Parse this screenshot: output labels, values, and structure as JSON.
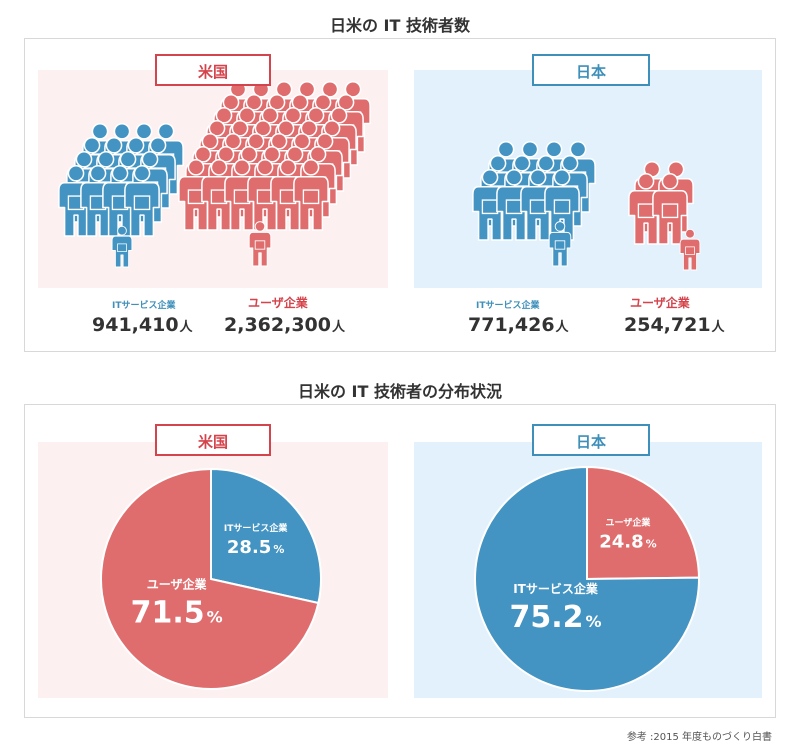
{
  "titles": {
    "top": "日米の IT 技術者数",
    "bottom": "日米の IT 技術者の分布状況"
  },
  "us": {
    "label": "米国",
    "it_label": "ITサービス企業",
    "it_count": "941,410",
    "user_label": "ユーザ企業",
    "user_count": "2,362,300",
    "unit": "人"
  },
  "jp": {
    "label": "日本",
    "it_label": "ITサービス企業",
    "it_count": "771,426",
    "user_label": "ユーザ企業",
    "user_count": "254,721",
    "unit": "人"
  },
  "colors": {
    "it_blue": "#4394c2",
    "user_red": "#e06d6e",
    "us_bg": "#fdf0f0",
    "jp_bg": "#e2f1fb"
  },
  "chart_data": [
    {
      "type": "pie",
      "title": "米国",
      "slices": [
        {
          "label": "ITサービス企業",
          "value": 28.5,
          "value_text": "28.5",
          "color": "#4394c2"
        },
        {
          "label": "ユーザ企業",
          "value": 71.5,
          "value_text": "71.5",
          "color": "#e06d6e"
        }
      ],
      "unit": "%"
    },
    {
      "type": "pie",
      "title": "日本",
      "slices": [
        {
          "label": "ユーザ企業",
          "value": 24.8,
          "value_text": "24.8",
          "color": "#e06d6e"
        },
        {
          "label": "ITサービス企業",
          "value": 75.2,
          "value_text": "75.2",
          "color": "#4394c2"
        }
      ],
      "unit": "%"
    }
  ],
  "source_note": "参考 :2015 年度ものづくり白書"
}
